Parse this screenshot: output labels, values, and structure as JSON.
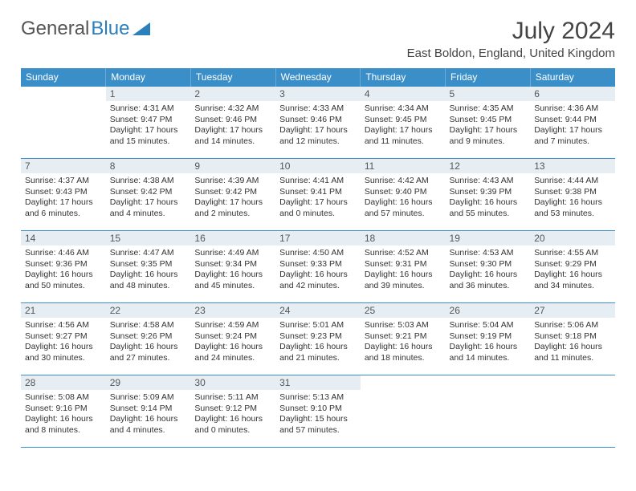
{
  "logo": {
    "part1": "General",
    "part2": "Blue"
  },
  "title": "July 2024",
  "location": "East Boldon, England, United Kingdom",
  "weekdays": [
    "Sunday",
    "Monday",
    "Tuesday",
    "Wednesday",
    "Thursday",
    "Friday",
    "Saturday"
  ],
  "colors": {
    "header_bg": "#3b8fc9",
    "header_text": "#ffffff",
    "daynum_bg": "#e6eef4",
    "border": "#3b8fc9",
    "body_text": "#333333",
    "logo_gray": "#555555",
    "logo_blue": "#2b7fbc"
  },
  "weeks": [
    [
      {
        "day": "",
        "sunrise": "",
        "sunset": "",
        "daylight": ""
      },
      {
        "day": "1",
        "sunrise": "Sunrise: 4:31 AM",
        "sunset": "Sunset: 9:47 PM",
        "daylight": "Daylight: 17 hours and 15 minutes."
      },
      {
        "day": "2",
        "sunrise": "Sunrise: 4:32 AM",
        "sunset": "Sunset: 9:46 PM",
        "daylight": "Daylight: 17 hours and 14 minutes."
      },
      {
        "day": "3",
        "sunrise": "Sunrise: 4:33 AM",
        "sunset": "Sunset: 9:46 PM",
        "daylight": "Daylight: 17 hours and 12 minutes."
      },
      {
        "day": "4",
        "sunrise": "Sunrise: 4:34 AM",
        "sunset": "Sunset: 9:45 PM",
        "daylight": "Daylight: 17 hours and 11 minutes."
      },
      {
        "day": "5",
        "sunrise": "Sunrise: 4:35 AM",
        "sunset": "Sunset: 9:45 PM",
        "daylight": "Daylight: 17 hours and 9 minutes."
      },
      {
        "day": "6",
        "sunrise": "Sunrise: 4:36 AM",
        "sunset": "Sunset: 9:44 PM",
        "daylight": "Daylight: 17 hours and 7 minutes."
      }
    ],
    [
      {
        "day": "7",
        "sunrise": "Sunrise: 4:37 AM",
        "sunset": "Sunset: 9:43 PM",
        "daylight": "Daylight: 17 hours and 6 minutes."
      },
      {
        "day": "8",
        "sunrise": "Sunrise: 4:38 AM",
        "sunset": "Sunset: 9:42 PM",
        "daylight": "Daylight: 17 hours and 4 minutes."
      },
      {
        "day": "9",
        "sunrise": "Sunrise: 4:39 AM",
        "sunset": "Sunset: 9:42 PM",
        "daylight": "Daylight: 17 hours and 2 minutes."
      },
      {
        "day": "10",
        "sunrise": "Sunrise: 4:41 AM",
        "sunset": "Sunset: 9:41 PM",
        "daylight": "Daylight: 17 hours and 0 minutes."
      },
      {
        "day": "11",
        "sunrise": "Sunrise: 4:42 AM",
        "sunset": "Sunset: 9:40 PM",
        "daylight": "Daylight: 16 hours and 57 minutes."
      },
      {
        "day": "12",
        "sunrise": "Sunrise: 4:43 AM",
        "sunset": "Sunset: 9:39 PM",
        "daylight": "Daylight: 16 hours and 55 minutes."
      },
      {
        "day": "13",
        "sunrise": "Sunrise: 4:44 AM",
        "sunset": "Sunset: 9:38 PM",
        "daylight": "Daylight: 16 hours and 53 minutes."
      }
    ],
    [
      {
        "day": "14",
        "sunrise": "Sunrise: 4:46 AM",
        "sunset": "Sunset: 9:36 PM",
        "daylight": "Daylight: 16 hours and 50 minutes."
      },
      {
        "day": "15",
        "sunrise": "Sunrise: 4:47 AM",
        "sunset": "Sunset: 9:35 PM",
        "daylight": "Daylight: 16 hours and 48 minutes."
      },
      {
        "day": "16",
        "sunrise": "Sunrise: 4:49 AM",
        "sunset": "Sunset: 9:34 PM",
        "daylight": "Daylight: 16 hours and 45 minutes."
      },
      {
        "day": "17",
        "sunrise": "Sunrise: 4:50 AM",
        "sunset": "Sunset: 9:33 PM",
        "daylight": "Daylight: 16 hours and 42 minutes."
      },
      {
        "day": "18",
        "sunrise": "Sunrise: 4:52 AM",
        "sunset": "Sunset: 9:31 PM",
        "daylight": "Daylight: 16 hours and 39 minutes."
      },
      {
        "day": "19",
        "sunrise": "Sunrise: 4:53 AM",
        "sunset": "Sunset: 9:30 PM",
        "daylight": "Daylight: 16 hours and 36 minutes."
      },
      {
        "day": "20",
        "sunrise": "Sunrise: 4:55 AM",
        "sunset": "Sunset: 9:29 PM",
        "daylight": "Daylight: 16 hours and 34 minutes."
      }
    ],
    [
      {
        "day": "21",
        "sunrise": "Sunrise: 4:56 AM",
        "sunset": "Sunset: 9:27 PM",
        "daylight": "Daylight: 16 hours and 30 minutes."
      },
      {
        "day": "22",
        "sunrise": "Sunrise: 4:58 AM",
        "sunset": "Sunset: 9:26 PM",
        "daylight": "Daylight: 16 hours and 27 minutes."
      },
      {
        "day": "23",
        "sunrise": "Sunrise: 4:59 AM",
        "sunset": "Sunset: 9:24 PM",
        "daylight": "Daylight: 16 hours and 24 minutes."
      },
      {
        "day": "24",
        "sunrise": "Sunrise: 5:01 AM",
        "sunset": "Sunset: 9:23 PM",
        "daylight": "Daylight: 16 hours and 21 minutes."
      },
      {
        "day": "25",
        "sunrise": "Sunrise: 5:03 AM",
        "sunset": "Sunset: 9:21 PM",
        "daylight": "Daylight: 16 hours and 18 minutes."
      },
      {
        "day": "26",
        "sunrise": "Sunrise: 5:04 AM",
        "sunset": "Sunset: 9:19 PM",
        "daylight": "Daylight: 16 hours and 14 minutes."
      },
      {
        "day": "27",
        "sunrise": "Sunrise: 5:06 AM",
        "sunset": "Sunset: 9:18 PM",
        "daylight": "Daylight: 16 hours and 11 minutes."
      }
    ],
    [
      {
        "day": "28",
        "sunrise": "Sunrise: 5:08 AM",
        "sunset": "Sunset: 9:16 PM",
        "daylight": "Daylight: 16 hours and 8 minutes."
      },
      {
        "day": "29",
        "sunrise": "Sunrise: 5:09 AM",
        "sunset": "Sunset: 9:14 PM",
        "daylight": "Daylight: 16 hours and 4 minutes."
      },
      {
        "day": "30",
        "sunrise": "Sunrise: 5:11 AM",
        "sunset": "Sunset: 9:12 PM",
        "daylight": "Daylight: 16 hours and 0 minutes."
      },
      {
        "day": "31",
        "sunrise": "Sunrise: 5:13 AM",
        "sunset": "Sunset: 9:10 PM",
        "daylight": "Daylight: 15 hours and 57 minutes."
      },
      {
        "day": "",
        "sunrise": "",
        "sunset": "",
        "daylight": ""
      },
      {
        "day": "",
        "sunrise": "",
        "sunset": "",
        "daylight": ""
      },
      {
        "day": "",
        "sunrise": "",
        "sunset": "",
        "daylight": ""
      }
    ]
  ]
}
